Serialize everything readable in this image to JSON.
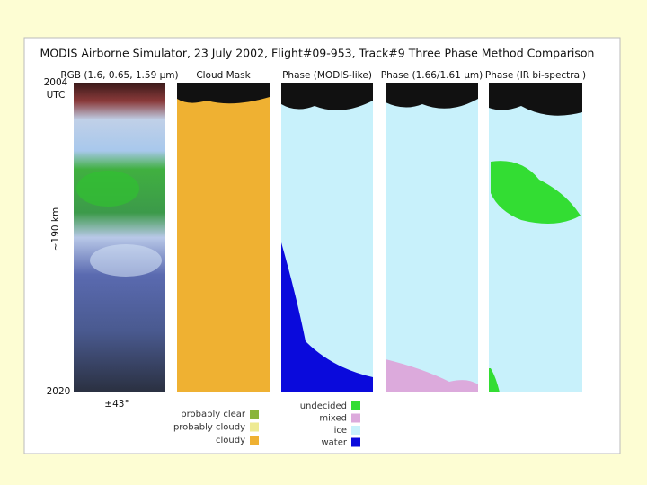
{
  "title": "MODIS Airborne Simulator, 23 July 2002, Flight#09-953, Track#9 Three Phase Method Comparison",
  "panels": [
    "RGB (1.6, 0.65, 1.59 µm)",
    "Cloud Mask",
    "Phase (MODIS-like)",
    "Phase (1.66/1.61 µm)",
    "Phase (IR bi-spectral)"
  ],
  "side_labels": {
    "start_time": "2004",
    "time_unit": "UTC",
    "distance": "~190 km",
    "end_time": "2020",
    "scan_angle": "±43°"
  },
  "cloud_mask_legend": [
    {
      "label": "probably clear",
      "color": "#8ab43c"
    },
    {
      "label": "probably cloudy",
      "color": "#eeea92"
    },
    {
      "label": "cloudy",
      "color": "#efb132"
    }
  ],
  "phase_legend": [
    {
      "label": "undecided",
      "color": "#33dd33"
    },
    {
      "label": "mixed",
      "color": "#dcaadc"
    },
    {
      "label": "ice",
      "color": "#c8f1fb"
    },
    {
      "label": "water",
      "color": "#0a0adc"
    }
  ]
}
